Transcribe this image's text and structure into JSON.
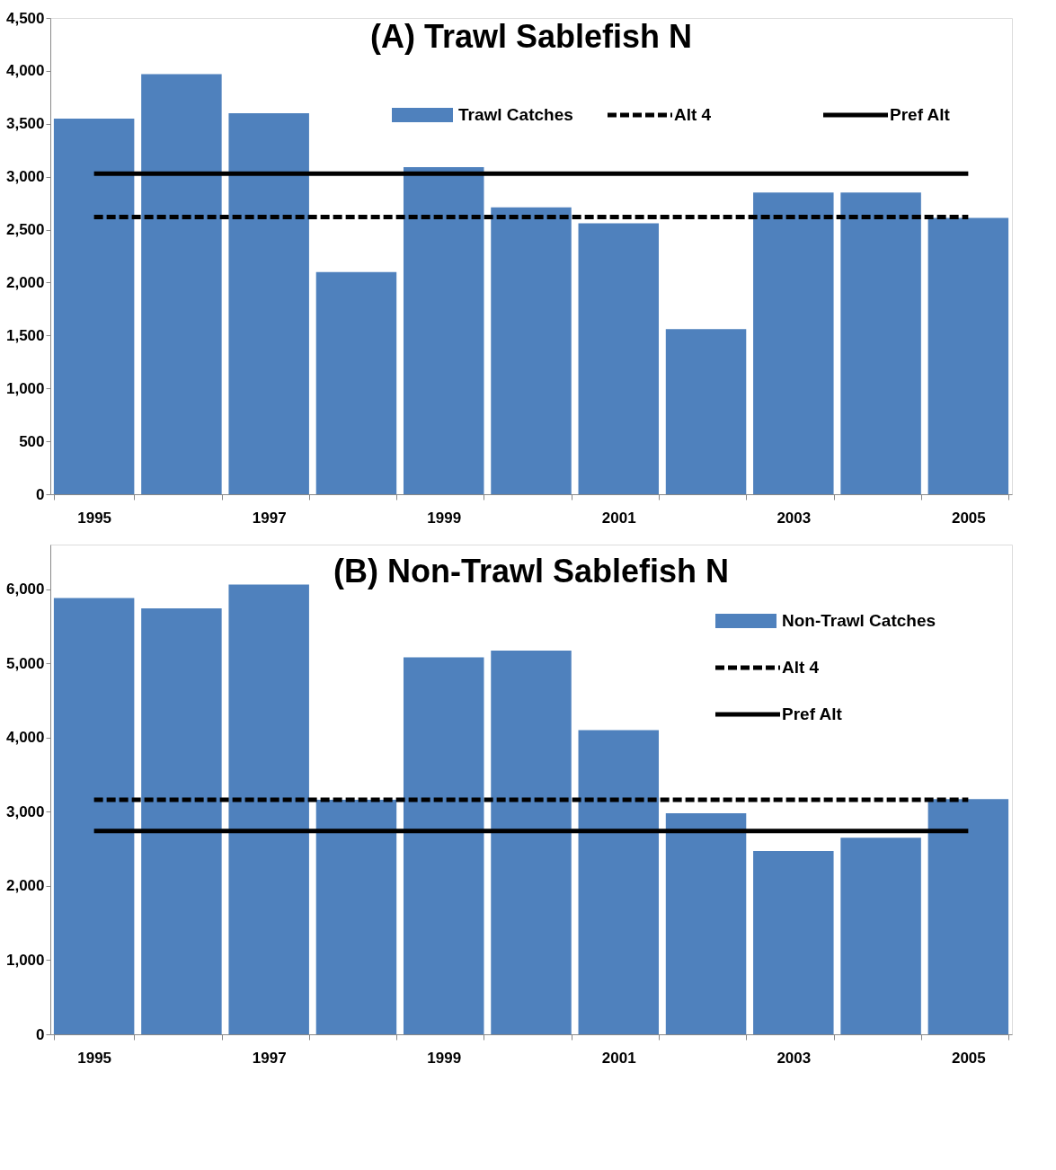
{
  "chart_data": [
    {
      "type": "bar",
      "title": "(A) Trawl Sablefish N",
      "categories": [
        "1995",
        null,
        "1997",
        null,
        "1999",
        null,
        "2001",
        null,
        "2003",
        null,
        "2005"
      ],
      "ylim": [
        0,
        4500
      ],
      "yticks": [
        0,
        500,
        {
          "value": 1000,
          "label": "1,000"
        },
        {
          "value": 1500,
          "label": "1,500"
        },
        {
          "value": 2000,
          "label": "2,000"
        },
        {
          "value": 2500,
          "label": "2,500"
        },
        {
          "value": 3000,
          "label": "3,000"
        },
        {
          "value": 3500,
          "label": "3,500"
        },
        {
          "value": 4000,
          "label": "4,000"
        },
        {
          "value": 4500,
          "label": "4,500"
        }
      ],
      "grid": false,
      "legend": "top",
      "series": [
        {
          "name": "Trawl Catches",
          "color": "#4f81bd",
          "values": [
            3550,
            3970,
            3600,
            2100,
            3090,
            2710,
            2560,
            1560,
            2850,
            2850,
            2610
          ]
        },
        {
          "name": "Alt 4",
          "type": "line",
          "line_style": "dashed",
          "color": "#000000",
          "values": [
            2620,
            2620,
            2620,
            2620,
            2620,
            2620,
            2620,
            2620,
            2620,
            2620,
            2620
          ]
        },
        {
          "name": "Pref Alt",
          "type": "line",
          "line_style": "solid",
          "color": "#000000",
          "values": [
            3030,
            3030,
            3030,
            3030,
            3030,
            3030,
            3030,
            3030,
            3030,
            3030,
            3030
          ]
        }
      ]
    },
    {
      "type": "bar",
      "title": "(B) Non-Trawl Sablefish N",
      "categories": [
        "1995",
        null,
        "1997",
        null,
        "1999",
        null,
        "2001",
        null,
        "2003",
        null,
        "2005"
      ],
      "ylim": [
        0,
        6600
      ],
      "yticks": [
        0,
        {
          "value": 1000,
          "label": "1,000"
        },
        {
          "value": 2000,
          "label": "2,000"
        },
        {
          "value": 3000,
          "label": "3,000"
        },
        {
          "value": 4000,
          "label": "4,000"
        },
        {
          "value": 5000,
          "label": "5,000"
        },
        {
          "value": 6000,
          "label": "6,000"
        }
      ],
      "grid": false,
      "legend": "top right",
      "series": [
        {
          "name": "Non-Trawl Catches",
          "color": "#4f81bd",
          "values": [
            5880,
            5740,
            6060,
            3160,
            5080,
            5170,
            4100,
            2980,
            2470,
            2650,
            3170
          ]
        },
        {
          "name": "Alt 4",
          "type": "line",
          "line_style": "dashed",
          "color": "#000000",
          "values": [
            3160,
            3160,
            3160,
            3160,
            3160,
            3160,
            3160,
            3160,
            3160,
            3160,
            3160
          ]
        },
        {
          "name": "Pref Alt",
          "type": "line",
          "line_style": "solid",
          "color": "#000000",
          "values": [
            2740,
            2740,
            2740,
            2740,
            2740,
            2740,
            2740,
            2740,
            2740,
            2740,
            2740
          ]
        }
      ]
    }
  ]
}
